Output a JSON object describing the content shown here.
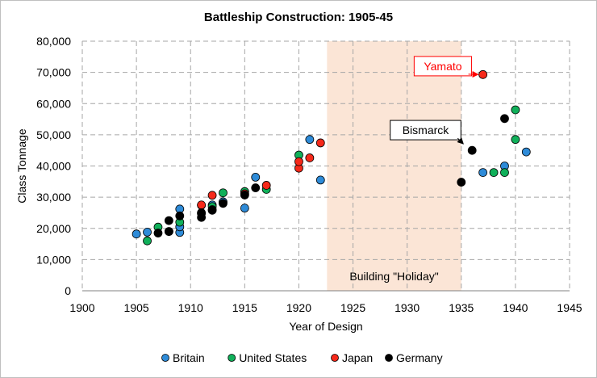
{
  "chart_data": {
    "type": "scatter",
    "title": "Battleship Construction: 1905-45",
    "xlabel": "Year of Design",
    "ylabel": "Class Tonnage",
    "xlim": [
      1900,
      1945
    ],
    "ylim": [
      0,
      80000
    ],
    "xticks": [
      1900,
      1905,
      1910,
      1915,
      1920,
      1925,
      1930,
      1935,
      1940,
      1945
    ],
    "yticks": [
      0,
      10000,
      20000,
      30000,
      40000,
      50000,
      60000,
      70000,
      80000
    ],
    "ytick_labels": [
      "0",
      "10,000",
      "20,000",
      "30,000",
      "40,000",
      "50,000",
      "60,000",
      "70,000",
      "80,000"
    ],
    "grid": true,
    "legend_position": "bottom",
    "shaded_region": {
      "x_from": 1922.6,
      "x_to": 1935,
      "label": "Building \"Holiday\"",
      "color": "#fbe5d6"
    },
    "annotations": [
      {
        "text": "Yamato",
        "target": [
          1937,
          69300
        ],
        "label_anchor": [
          1933.3,
          72000
        ],
        "color": "#ff0000"
      },
      {
        "text": "Bismarck",
        "target": [
          1935.5,
          46000
        ],
        "label_anchor": [
          1931.7,
          51500
        ],
        "color": "#000000"
      }
    ],
    "series": [
      {
        "name": "Britain",
        "color": "#2e8bd8",
        "points": [
          [
            1905,
            18200
          ],
          [
            1906,
            18800
          ],
          [
            1908,
            19000
          ],
          [
            1909,
            18700
          ],
          [
            1909,
            20500
          ],
          [
            1909,
            26200
          ],
          [
            1911,
            24800
          ],
          [
            1912,
            25800
          ],
          [
            1912,
            27500
          ],
          [
            1913,
            28500
          ],
          [
            1915,
            26500
          ],
          [
            1916,
            36400
          ],
          [
            1921,
            48500
          ],
          [
            1922,
            35500
          ],
          [
            1937,
            37900
          ],
          [
            1939,
            40000
          ],
          [
            1941,
            44500
          ]
        ]
      },
      {
        "name": "United States",
        "color": "#10b05a",
        "points": [
          [
            1906,
            16000
          ],
          [
            1907,
            20400
          ],
          [
            1909,
            22000
          ],
          [
            1911,
            27400
          ],
          [
            1912,
            27000
          ],
          [
            1913,
            31400
          ],
          [
            1915,
            31800
          ],
          [
            1917,
            32500
          ],
          [
            1920,
            43500
          ],
          [
            1938,
            37900
          ],
          [
            1939,
            37900
          ],
          [
            1940,
            58000
          ],
          [
            1940,
            48500
          ]
        ]
      },
      {
        "name": "Japan",
        "color": "#f5291a",
        "points": [
          [
            1911,
            27500
          ],
          [
            1912,
            30600
          ],
          [
            1915,
            31100
          ],
          [
            1917,
            33800
          ],
          [
            1920,
            39300
          ],
          [
            1920,
            41400
          ],
          [
            1921,
            42600
          ],
          [
            1922,
            47400
          ],
          [
            1937,
            69300
          ]
        ]
      },
      {
        "name": "Germany",
        "color": "#000000",
        "points": [
          [
            1907,
            18500
          ],
          [
            1908,
            19000
          ],
          [
            1908,
            22500
          ],
          [
            1909,
            24000
          ],
          [
            1911,
            23500
          ],
          [
            1911,
            25000
          ],
          [
            1912,
            26000
          ],
          [
            1913,
            28000
          ],
          [
            1915,
            30700
          ],
          [
            1916,
            33000
          ],
          [
            1935,
            34800
          ],
          [
            1936,
            45000
          ],
          [
            1939,
            55200
          ]
        ]
      }
    ]
  }
}
